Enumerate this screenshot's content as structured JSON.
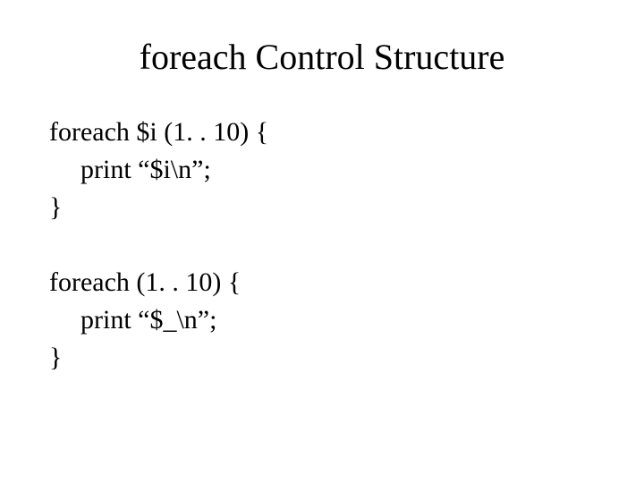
{
  "slide": {
    "title": "foreach Control Structure",
    "block1": {
      "line1": "foreach $i (1. . 10) {",
      "line2": "print “$i\\n”;",
      "line3": "}"
    },
    "block2": {
      "line1": "foreach (1. . 10) {",
      "line2": "print “$_\\n”;",
      "line3": "}"
    },
    "colors": {
      "background": "#ffffff",
      "text": "#000000"
    },
    "fonts": {
      "title_size": 40,
      "body_size": 30,
      "family": "Times New Roman"
    }
  }
}
